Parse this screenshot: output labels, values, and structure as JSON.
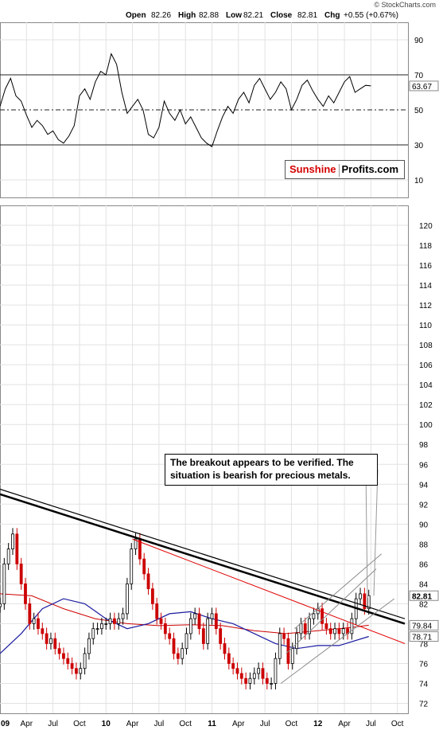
{
  "header": {
    "watermark": "© StockCharts.com",
    "open_label": "Open",
    "open": "82.26",
    "high_label": "High",
    "high": "82.88",
    "low_label": "Low",
    "low": "82.21",
    "close_label": "Close",
    "close": "82.81",
    "chg_label": "Chg",
    "chg": "+0.55 (+0.67%)"
  },
  "logo": {
    "part1": "Sunshine",
    "part2": "Profits.com"
  },
  "annotation": {
    "line1": "The breakout appears to be verified. The",
    "line2": "situation is bearish for precious metals."
  },
  "colors": {
    "up": "#000000",
    "down": "#cc0000",
    "rsi_fill": "#3a6b3a",
    "ma_short": "#cc0000",
    "ma_long": "#1a1aa0"
  },
  "chart_data": [
    {
      "type": "line",
      "panel": "RSI",
      "ylim": [
        0,
        100
      ],
      "ytick_labels": [
        "90",
        "70",
        "50",
        "30",
        "10"
      ],
      "reference_lines": [
        70,
        50,
        30
      ],
      "last_value_label": "63.67",
      "x": [
        2009.0,
        2009.05,
        2009.1,
        2009.15,
        2009.2,
        2009.25,
        2009.3,
        2009.35,
        2009.4,
        2009.45,
        2009.5,
        2009.55,
        2009.6,
        2009.65,
        2009.7,
        2009.75,
        2009.8,
        2009.85,
        2009.9,
        2009.95,
        2010.0,
        2010.05,
        2010.1,
        2010.15,
        2010.2,
        2010.25,
        2010.3,
        2010.35,
        2010.4,
        2010.45,
        2010.5,
        2010.55,
        2010.6,
        2010.65,
        2010.7,
        2010.75,
        2010.8,
        2010.85,
        2010.9,
        2010.95,
        2011.0,
        2011.05,
        2011.1,
        2011.15,
        2011.2,
        2011.25,
        2011.3,
        2011.35,
        2011.4,
        2011.45,
        2011.5,
        2011.55,
        2011.6,
        2011.65,
        2011.7,
        2011.75,
        2011.8,
        2011.85,
        2011.9,
        2011.95,
        2012.0,
        2012.05,
        2012.1,
        2012.15,
        2012.2,
        2012.25,
        2012.3,
        2012.35,
        2012.4,
        2012.45,
        2012.5
      ],
      "values": [
        52,
        62,
        68,
        58,
        55,
        47,
        40,
        44,
        41,
        36,
        38,
        33,
        31,
        35,
        41,
        58,
        62,
        56,
        66,
        72,
        70,
        82,
        76,
        60,
        48,
        52,
        56,
        50,
        36,
        34,
        40,
        55,
        48,
        44,
        50,
        42,
        46,
        40,
        34,
        31,
        29,
        38,
        46,
        52,
        48,
        56,
        60,
        54,
        64,
        68,
        62,
        56,
        60,
        66,
        62,
        50,
        56,
        64,
        67,
        61,
        56,
        52,
        58,
        54,
        60,
        66,
        69,
        60,
        62,
        64,
        63.67
      ],
      "highlight_region": {
        "from": 2010.25,
        "to": 2010.35,
        "above": 70
      }
    },
    {
      "type": "candlestick",
      "panel": "price",
      "ylim": [
        71,
        122
      ],
      "ytick_labels": [
        "120",
        "118",
        "116",
        "114",
        "112",
        "110",
        "108",
        "106",
        "104",
        "102",
        "100",
        "98",
        "96",
        "94",
        "92",
        "90",
        "88",
        "86",
        "84",
        "82",
        "80",
        "78",
        "76",
        "74",
        "72"
      ],
      "xtick_labels": [
        "09",
        "Apr",
        "Jul",
        "Oct",
        "10",
        "Apr",
        "Jul",
        "Oct",
        "11",
        "Apr",
        "Jul",
        "Oct",
        "12",
        "Apr",
        "Jul",
        "Oct"
      ],
      "xticks": [
        2009.0,
        2009.25,
        2009.5,
        2009.75,
        2010.0,
        2010.25,
        2010.5,
        2010.75,
        2011.0,
        2011.25,
        2011.5,
        2011.75,
        2012.0,
        2012.25,
        2012.5,
        2012.75
      ],
      "xlim": [
        2009.0,
        2012.85
      ],
      "price_labels": {
        "last": "82.81",
        "ma_short": "79.84",
        "ma_long": "78.71"
      },
      "closes": [
        {
          "t": 2009.0,
          "c": 82.0
        },
        {
          "t": 2009.04,
          "c": 86.0
        },
        {
          "t": 2009.08,
          "c": 87.5
        },
        {
          "t": 2009.12,
          "c": 89.0
        },
        {
          "t": 2009.16,
          "c": 86.0
        },
        {
          "t": 2009.2,
          "c": 84.0
        },
        {
          "t": 2009.24,
          "c": 82.0
        },
        {
          "t": 2009.28,
          "c": 80.0
        },
        {
          "t": 2009.32,
          "c": 80.5
        },
        {
          "t": 2009.36,
          "c": 79.5
        },
        {
          "t": 2009.4,
          "c": 79.0
        },
        {
          "t": 2009.44,
          "c": 78.0
        },
        {
          "t": 2009.48,
          "c": 78.5
        },
        {
          "t": 2009.52,
          "c": 77.5
        },
        {
          "t": 2009.56,
          "c": 77.0
        },
        {
          "t": 2009.6,
          "c": 76.5
        },
        {
          "t": 2009.64,
          "c": 76.0
        },
        {
          "t": 2009.68,
          "c": 75.5
        },
        {
          "t": 2009.72,
          "c": 75.0
        },
        {
          "t": 2009.76,
          "c": 75.5
        },
        {
          "t": 2009.8,
          "c": 77.0
        },
        {
          "t": 2009.84,
          "c": 78.5
        },
        {
          "t": 2009.88,
          "c": 79.5
        },
        {
          "t": 2009.92,
          "c": 79.5
        },
        {
          "t": 2009.96,
          "c": 80.0
        },
        {
          "t": 2010.0,
          "c": 80.0
        },
        {
          "t": 2010.04,
          "c": 80.5
        },
        {
          "t": 2010.08,
          "c": 80.0
        },
        {
          "t": 2010.12,
          "c": 80.5
        },
        {
          "t": 2010.16,
          "c": 81.0
        },
        {
          "t": 2010.2,
          "c": 84.0
        },
        {
          "t": 2010.24,
          "c": 87.5
        },
        {
          "t": 2010.28,
          "c": 88.5
        },
        {
          "t": 2010.32,
          "c": 86.5
        },
        {
          "t": 2010.36,
          "c": 85.0
        },
        {
          "t": 2010.4,
          "c": 83.5
        },
        {
          "t": 2010.44,
          "c": 82.0
        },
        {
          "t": 2010.48,
          "c": 80.5
        },
        {
          "t": 2010.52,
          "c": 80.0
        },
        {
          "t": 2010.56,
          "c": 79.0
        },
        {
          "t": 2010.6,
          "c": 78.5
        },
        {
          "t": 2010.64,
          "c": 77.0
        },
        {
          "t": 2010.68,
          "c": 76.5
        },
        {
          "t": 2010.72,
          "c": 77.5
        },
        {
          "t": 2010.76,
          "c": 79.0
        },
        {
          "t": 2010.8,
          "c": 80.5
        },
        {
          "t": 2010.84,
          "c": 81.0
        },
        {
          "t": 2010.88,
          "c": 79.5
        },
        {
          "t": 2010.92,
          "c": 78.0
        },
        {
          "t": 2010.96,
          "c": 80.5
        },
        {
          "t": 2011.0,
          "c": 81.0
        },
        {
          "t": 2011.04,
          "c": 79.5
        },
        {
          "t": 2011.08,
          "c": 78.0
        },
        {
          "t": 2011.12,
          "c": 77.0
        },
        {
          "t": 2011.16,
          "c": 76.0
        },
        {
          "t": 2011.2,
          "c": 75.5
        },
        {
          "t": 2011.24,
          "c": 75.0
        },
        {
          "t": 2011.28,
          "c": 74.5
        },
        {
          "t": 2011.32,
          "c": 74.0
        },
        {
          "t": 2011.36,
          "c": 74.5
        },
        {
          "t": 2011.4,
          "c": 75.0
        },
        {
          "t": 2011.44,
          "c": 75.5
        },
        {
          "t": 2011.48,
          "c": 74.5
        },
        {
          "t": 2011.52,
          "c": 74.0
        },
        {
          "t": 2011.56,
          "c": 74.0
        },
        {
          "t": 2011.6,
          "c": 76.5
        },
        {
          "t": 2011.64,
          "c": 79.0
        },
        {
          "t": 2011.68,
          "c": 78.5
        },
        {
          "t": 2011.72,
          "c": 76.0
        },
        {
          "t": 2011.76,
          "c": 77.5
        },
        {
          "t": 2011.8,
          "c": 79.0
        },
        {
          "t": 2011.84,
          "c": 80.0
        },
        {
          "t": 2011.88,
          "c": 79.0
        },
        {
          "t": 2011.92,
          "c": 80.5
        },
        {
          "t": 2011.96,
          "c": 81.0
        },
        {
          "t": 2012.0,
          "c": 81.5
        },
        {
          "t": 2012.04,
          "c": 80.0
        },
        {
          "t": 2012.08,
          "c": 79.5
        },
        {
          "t": 2012.12,
          "c": 79.0
        },
        {
          "t": 2012.16,
          "c": 79.5
        },
        {
          "t": 2012.2,
          "c": 79.0
        },
        {
          "t": 2012.24,
          "c": 79.5
        },
        {
          "t": 2012.28,
          "c": 79.0
        },
        {
          "t": 2012.32,
          "c": 80.5
        },
        {
          "t": 2012.36,
          "c": 82.5
        },
        {
          "t": 2012.4,
          "c": 83.0
        },
        {
          "t": 2012.44,
          "c": 81.5
        },
        {
          "t": 2012.48,
          "c": 82.81
        }
      ],
      "ma_short_series": [
        [
          2009.0,
          83.0
        ],
        [
          2009.3,
          82.8
        ],
        [
          2009.6,
          81.5
        ],
        [
          2009.9,
          80.5
        ],
        [
          2010.2,
          80.0
        ],
        [
          2010.5,
          79.8
        ],
        [
          2010.8,
          79.9
        ],
        [
          2011.1,
          79.8
        ],
        [
          2011.4,
          79.3
        ],
        [
          2011.7,
          79.0
        ],
        [
          2012.0,
          79.3
        ],
        [
          2012.3,
          79.6
        ],
        [
          2012.48,
          79.84
        ]
      ],
      "ma_long_series": [
        [
          2009.0,
          77.0
        ],
        [
          2009.2,
          79.0
        ],
        [
          2009.4,
          81.5
        ],
        [
          2009.6,
          82.5
        ],
        [
          2009.8,
          82.0
        ],
        [
          2010.0,
          80.5
        ],
        [
          2010.2,
          79.5
        ],
        [
          2010.4,
          80.0
        ],
        [
          2010.6,
          81.0
        ],
        [
          2010.8,
          81.2
        ],
        [
          2011.0,
          80.5
        ],
        [
          2011.2,
          80.0
        ],
        [
          2011.4,
          79.0
        ],
        [
          2011.6,
          78.0
        ],
        [
          2011.8,
          77.5
        ],
        [
          2012.0,
          77.8
        ],
        [
          2012.2,
          77.8
        ],
        [
          2012.48,
          78.71
        ]
      ],
      "trendlines": [
        {
          "name": "black-resistance-upper",
          "points": [
            [
              2009.0,
              93.5
            ],
            [
              2012.82,
              80.5
            ]
          ],
          "width": 1.2
        },
        {
          "name": "black-resistance-lower",
          "points": [
            [
              2009.0,
              93.0
            ],
            [
              2012.82,
              80.0
            ]
          ],
          "width": 2.5
        },
        {
          "name": "red-declining-line",
          "points": [
            [
              2010.25,
              88.5
            ],
            [
              2012.82,
              78.0
            ]
          ],
          "width": 1.0
        },
        {
          "name": "grey-channel-upper",
          "points": [
            [
              2011.78,
              79.5
            ],
            [
              2012.6,
              87.0
            ]
          ],
          "width": 1.0
        },
        {
          "name": "grey-channel-middle",
          "points": [
            [
              2011.7,
              77.0
            ],
            [
              2012.55,
              85.5
            ]
          ],
          "width": 1.0
        },
        {
          "name": "grey-channel-lower",
          "points": [
            [
              2011.65,
              74.0
            ],
            [
              2012.72,
              82.5
            ]
          ],
          "width": 1.0
        }
      ]
    }
  ]
}
